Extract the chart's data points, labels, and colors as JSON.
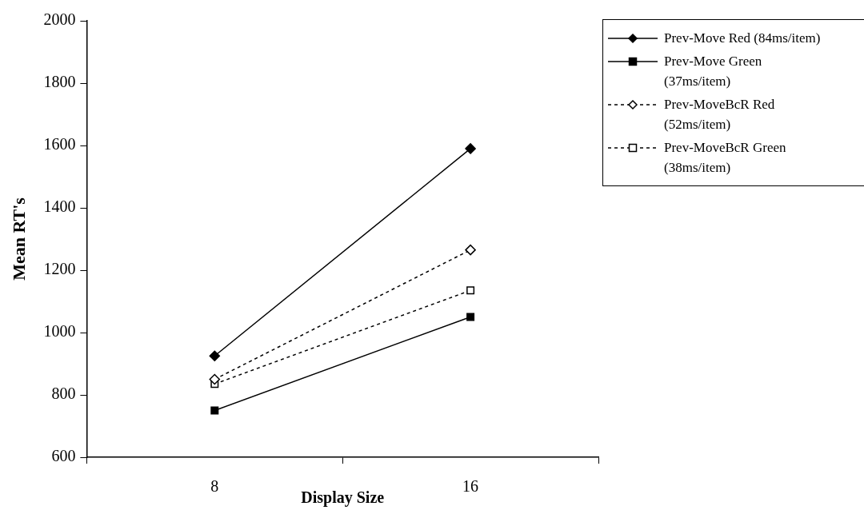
{
  "chart_data": {
    "type": "line",
    "xlabel": "Display Size",
    "ylabel": "Mean RT's",
    "categories": [
      "8",
      "16"
    ],
    "series": [
      {
        "name": "Prev-Move Red (84ms/item)",
        "color": "#000000",
        "values": [
          925,
          1590
        ],
        "marker": "diamond",
        "line_style": "solid"
      },
      {
        "name": "Prev-Move Green (37ms/item)",
        "color": "#000000",
        "values": [
          750,
          1050
        ],
        "marker": "square",
        "line_style": "solid"
      },
      {
        "name": "Prev-MoveBcR Red (52ms/item)",
        "color": "#000000",
        "values": [
          850,
          1265
        ],
        "marker": "diamond",
        "line_style": "dashed"
      },
      {
        "name": "Prev-MoveBcR Green (38ms/item)",
        "color": "#000000",
        "values": [
          835,
          1135
        ],
        "marker": "square",
        "line_style": "dashed"
      }
    ],
    "ylim": [
      600,
      2000
    ],
    "yticks": [
      600,
      800,
      1000,
      1200,
      1400,
      1600,
      1800,
      2000
    ],
    "grid": false,
    "legend": "top right"
  }
}
